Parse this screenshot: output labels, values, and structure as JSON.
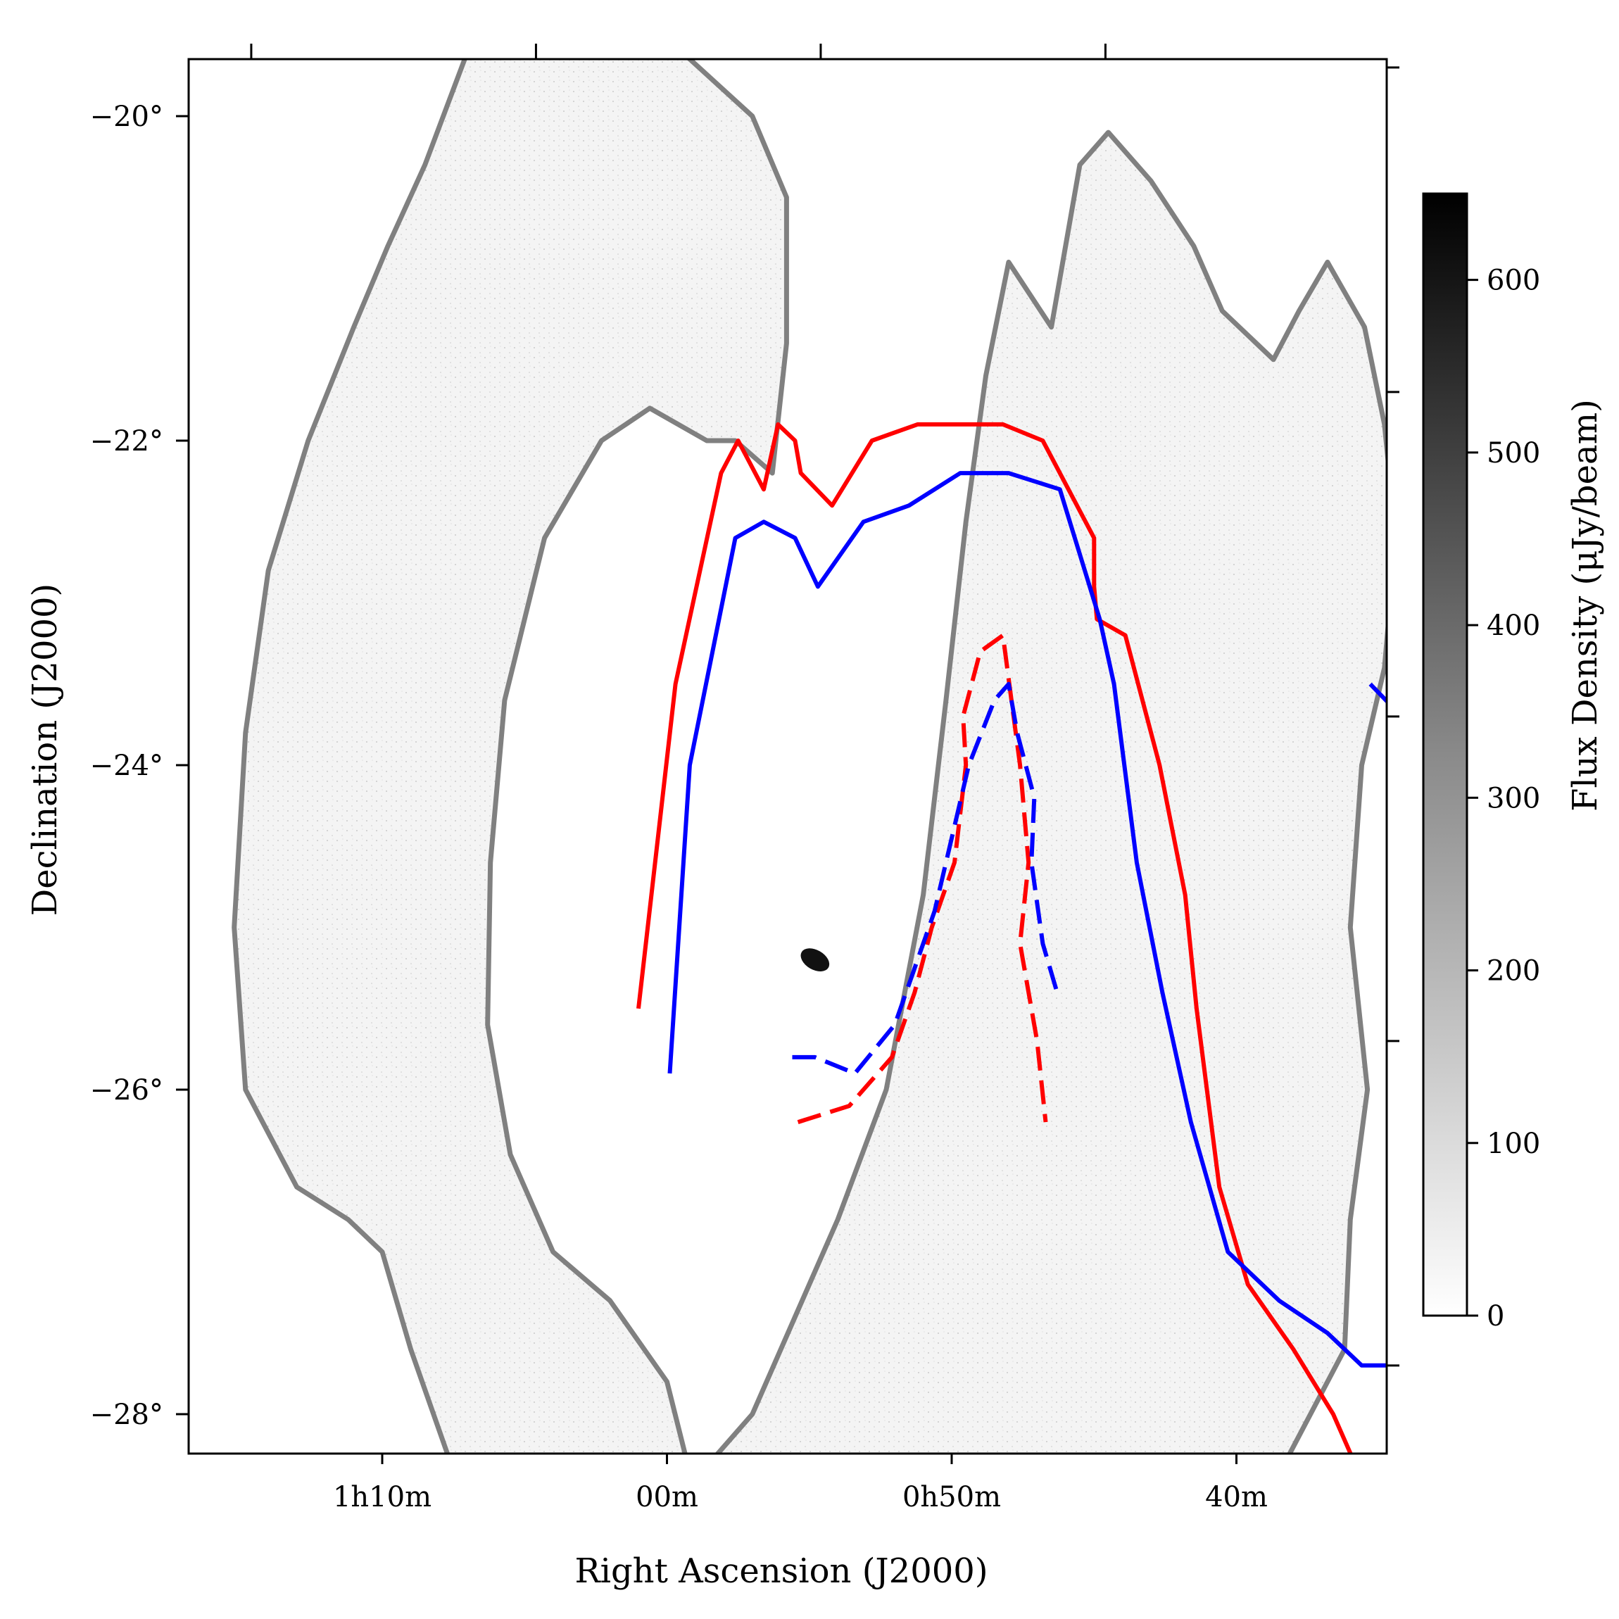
{
  "chart_data": {
    "type": "sky-map",
    "xlabel": "Right Ascension (J2000)",
    "ylabel": "Declination (J2000)",
    "colorbar_label": "Flux Density (μJy/beam)",
    "x_ticks": [
      {
        "ra_min": 70,
        "text": "1h10m"
      },
      {
        "ra_min": 60,
        "text": "00m"
      },
      {
        "ra_min": 50,
        "text": "0h50m"
      },
      {
        "ra_min": 40,
        "text": "40m"
      }
    ],
    "y_ticks": [
      {
        "dec": -20,
        "text": "−20°"
      },
      {
        "dec": -22,
        "text": "−22°"
      },
      {
        "dec": -24,
        "text": "−24°"
      },
      {
        "dec": -26,
        "text": "−26°"
      },
      {
        "dec": -28,
        "text": "−28°"
      }
    ],
    "colorbar": {
      "cmap": "Greys",
      "range": [
        0,
        650
      ],
      "ticks": [
        0,
        100,
        200,
        300,
        400,
        500,
        600
      ]
    },
    "colors": {
      "survey_footprint": "#808080",
      "red_contours": "#ff0000",
      "blue_contours": "#0000ff"
    },
    "overlays": [
      {
        "name": "survey footprint (pointing 1)",
        "color": "#808080",
        "style": "solid",
        "points": [
          [
            67,
            -28.6
          ],
          [
            65,
            -28.8
          ],
          [
            63,
            -28.8
          ],
          [
            61,
            -28.6
          ],
          [
            59,
            -28.4
          ],
          [
            57,
            -28.0
          ],
          [
            55.5,
            -27.4
          ],
          [
            54,
            -26.8
          ],
          [
            52.3,
            -26.0
          ],
          [
            51.0,
            -24.8
          ],
          [
            50.2,
            -23.6
          ],
          [
            49.5,
            -22.5
          ],
          [
            48.8,
            -21.6
          ],
          [
            48.0,
            -20.9
          ],
          [
            46.5,
            -21.3
          ],
          [
            45.5,
            -20.3
          ],
          [
            44.5,
            -20.1
          ],
          [
            43.0,
            -20.4
          ],
          [
            41.5,
            -20.8
          ],
          [
            40.5,
            -21.2
          ],
          [
            38.7,
            -21.5
          ],
          [
            37.8,
            -21.2
          ],
          [
            36.8,
            -20.9
          ],
          [
            35.5,
            -21.3
          ],
          [
            34.8,
            -21.9
          ],
          [
            34.4,
            -22.6
          ],
          [
            34.8,
            -23.4
          ],
          [
            35.6,
            -24.0
          ],
          [
            36.0,
            -25.0
          ],
          [
            35.4,
            -26.0
          ],
          [
            36.0,
            -26.8
          ],
          [
            36.2,
            -27.6
          ],
          [
            38.3,
            -28.3
          ],
          [
            40.5,
            -28.6
          ],
          [
            42.3,
            -28.7
          ],
          [
            44.0,
            -28.5
          ],
          [
            45.9,
            -28.6
          ],
          [
            48.0,
            -28.8
          ],
          [
            50.0,
            -28.6
          ],
          [
            52.0,
            -28.8
          ],
          [
            53.7,
            -28.6
          ],
          [
            55.5,
            -28.9
          ],
          [
            57.5,
            -28.8
          ],
          [
            59.0,
            -28.5
          ],
          [
            60.0,
            -27.8
          ],
          [
            62.0,
            -27.3
          ],
          [
            64.0,
            -27.0
          ],
          [
            65.5,
            -26.4
          ],
          [
            66.3,
            -25.6
          ],
          [
            66.2,
            -24.6
          ],
          [
            65.7,
            -23.6
          ],
          [
            64.3,
            -22.6
          ],
          [
            62.3,
            -22.0
          ],
          [
            60.6,
            -21.8
          ],
          [
            58.6,
            -22.0
          ],
          [
            57.6,
            -22.0
          ],
          [
            56.3,
            -22.2
          ],
          [
            55.8,
            -21.4
          ],
          [
            55.8,
            -20.5
          ],
          [
            57.0,
            -20.0
          ],
          [
            59.5,
            -19.6
          ],
          [
            62.5,
            -19.2
          ],
          [
            65.0,
            -19.3
          ],
          [
            67.0,
            -19.6
          ],
          [
            68.5,
            -20.3
          ],
          [
            69.8,
            -20.8
          ],
          [
            71.0,
            -21.3
          ],
          [
            72.6,
            -22.0
          ],
          [
            74.0,
            -22.8
          ],
          [
            74.8,
            -23.8
          ],
          [
            75.2,
            -25.0
          ],
          [
            74.8,
            -26.0
          ],
          [
            73.0,
            -26.6
          ],
          [
            71.2,
            -26.8
          ],
          [
            70.0,
            -27.0
          ],
          [
            69.0,
            -27.6
          ],
          [
            67.0,
            -28.6
          ]
        ]
      },
      {
        "name": "outer red contour",
        "color": "#ff0000",
        "style": "solid",
        "points": [
          [
            61.0,
            -25.5
          ],
          [
            59.7,
            -23.5
          ],
          [
            58.1,
            -22.2
          ],
          [
            57.5,
            -22.0
          ],
          [
            56.6,
            -22.3
          ],
          [
            56.1,
            -21.9
          ],
          [
            55.5,
            -22.0
          ],
          [
            55.3,
            -22.2
          ],
          [
            54.2,
            -22.4
          ],
          [
            52.8,
            -22.0
          ],
          [
            51.2,
            -21.9
          ],
          [
            49.5,
            -21.9
          ],
          [
            48.2,
            -21.9
          ],
          [
            46.8,
            -22.0
          ],
          [
            45.0,
            -22.6
          ],
          [
            45.0,
            -22.9
          ],
          [
            44.9,
            -23.1
          ],
          [
            43.9,
            -23.2
          ],
          [
            42.7,
            -24.0
          ],
          [
            41.8,
            -24.8
          ],
          [
            41.4,
            -25.5
          ],
          [
            40.6,
            -26.6
          ],
          [
            39.6,
            -27.2
          ],
          [
            38.0,
            -27.6
          ],
          [
            36.6,
            -28.0
          ],
          [
            35.6,
            -28.4
          ],
          [
            34.2,
            -28.6
          ],
          [
            32.8,
            -28.8
          ],
          [
            31.1,
            -28.8
          ],
          [
            29.8,
            -28.3
          ],
          [
            28.7,
            -28.2
          ],
          [
            27.5,
            -27.6
          ],
          [
            26.8,
            -27.2
          ],
          [
            27.1,
            -27.0
          ],
          [
            25.6,
            -26.7
          ],
          [
            24.9,
            -26.5
          ],
          [
            24.6,
            -25.8
          ],
          [
            26.0,
            -25.3
          ],
          [
            26.1,
            -25.0
          ],
          [
            27.2,
            -24.8
          ],
          [
            27.4,
            -23.8
          ],
          [
            28.4,
            -23.5
          ],
          [
            29.2,
            -23.3
          ],
          [
            29.0,
            -22.9
          ],
          [
            30.2,
            -22.5
          ],
          [
            32.1,
            -22.1
          ],
          [
            33.4,
            -21.8
          ],
          [
            33.6,
            -22.1
          ]
        ]
      },
      {
        "name": "outer blue contour",
        "color": "#0000ff",
        "style": "solid",
        "points": [
          [
            59.9,
            -25.9
          ],
          [
            59.2,
            -24.0
          ],
          [
            57.6,
            -22.6
          ],
          [
            56.6,
            -22.5
          ],
          [
            55.5,
            -22.6
          ],
          [
            54.7,
            -22.9
          ],
          [
            53.1,
            -22.5
          ],
          [
            51.5,
            -22.4
          ],
          [
            49.7,
            -22.2
          ],
          [
            48.0,
            -22.2
          ],
          [
            46.2,
            -22.3
          ],
          [
            44.8,
            -23.1
          ],
          [
            44.3,
            -23.5
          ],
          [
            43.5,
            -24.6
          ],
          [
            42.6,
            -25.4
          ],
          [
            41.6,
            -26.2
          ],
          [
            40.3,
            -27.0
          ],
          [
            38.5,
            -27.3
          ],
          [
            36.8,
            -27.5
          ],
          [
            35.6,
            -27.7
          ],
          [
            34.3,
            -27.7
          ],
          [
            33.5,
            -27.8
          ],
          [
            32.8,
            -27.4
          ],
          [
            31.7,
            -27.3
          ],
          [
            29.9,
            -26.8
          ],
          [
            29.2,
            -26.4
          ],
          [
            28.9,
            -25.9
          ],
          [
            29.4,
            -25.5
          ],
          [
            30.5,
            -25.2
          ],
          [
            31.0,
            -25.0
          ],
          [
            31.8,
            -24.7
          ],
          [
            32.6,
            -24.2
          ],
          [
            33.2,
            -23.8
          ],
          [
            34.2,
            -23.7
          ],
          [
            35.3,
            -23.5
          ]
        ]
      },
      {
        "name": "inner red dashed contour",
        "color": "#ff0000",
        "style": "dashed",
        "points": [
          [
            55.4,
            -26.2
          ],
          [
            53.6,
            -26.1
          ],
          [
            52.1,
            -25.8
          ],
          [
            51.3,
            -25.4
          ],
          [
            50.7,
            -25.0
          ],
          [
            49.9,
            -24.6
          ],
          [
            49.5,
            -24.0
          ],
          [
            49.6,
            -23.7
          ],
          [
            49.0,
            -23.3
          ],
          [
            48.2,
            -23.2
          ],
          [
            47.9,
            -23.6
          ],
          [
            47.6,
            -24.0
          ],
          [
            47.3,
            -24.6
          ],
          [
            47.6,
            -25.1
          ],
          [
            47.0,
            -25.7
          ],
          [
            46.7,
            -26.2
          ]
        ]
      },
      {
        "name": "inner blue dashed contour",
        "color": "#0000ff",
        "style": "dashed",
        "points": [
          [
            55.6,
            -25.8
          ],
          [
            54.8,
            -25.8
          ],
          [
            53.4,
            -25.9
          ],
          [
            52.0,
            -25.6
          ],
          [
            51.4,
            -25.3
          ],
          [
            50.6,
            -24.9
          ],
          [
            50.2,
            -24.6
          ],
          [
            49.4,
            -24.0
          ],
          [
            48.5,
            -23.6
          ],
          [
            48.0,
            -23.5
          ],
          [
            47.7,
            -23.8
          ],
          [
            47.1,
            -24.2
          ],
          [
            47.2,
            -24.6
          ],
          [
            46.8,
            -25.1
          ],
          [
            46.3,
            -25.4
          ]
        ]
      }
    ]
  }
}
